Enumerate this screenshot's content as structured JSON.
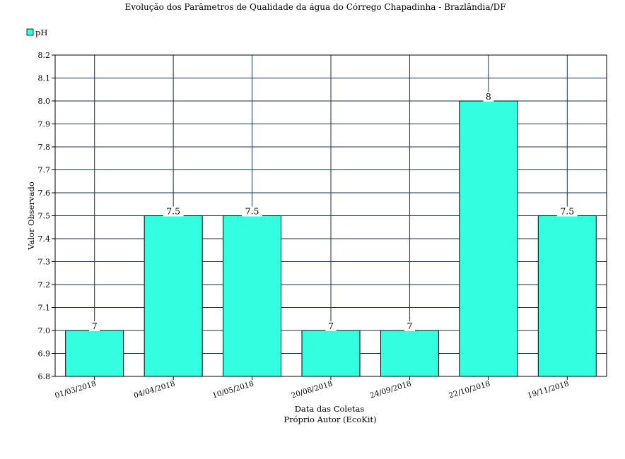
{
  "chart_data": {
    "type": "bar",
    "title": "Evolução dos Parâmetros de Qualidade da água do Córrego Chapadinha - Brazlândia/DF",
    "subtitle": "",
    "xlabel": "Data das Coletas",
    "source": "Próprio Autor (EcoKit)",
    "ylabel": "Valor Observado",
    "categories": [
      "01/03/2018",
      "04/04/2018",
      "10/05/2018",
      "20/08/2018",
      "24/09/2018",
      "22/10/2018",
      "19/11/2018"
    ],
    "series": [
      {
        "name": "pH",
        "values": [
          7,
          7.5,
          7.5,
          7,
          7,
          8,
          7.5
        ],
        "labels": [
          "7",
          "7.5",
          "7.5",
          "7",
          "7",
          "8",
          "7.5"
        ]
      }
    ],
    "ylim": [
      6.8,
      8.2
    ],
    "yticks": [
      "6.8",
      "6.9",
      "7.0",
      "7.1",
      "7.2",
      "7.3",
      "7.4",
      "7.5",
      "7.6",
      "7.7",
      "7.8",
      "7.9",
      "8.0",
      "8.1",
      "8.2"
    ],
    "grid": true,
    "legend_position": "top-left",
    "colors": {
      "bar": "#33ffe0",
      "grid": "#17324a",
      "border": "#000000"
    }
  }
}
